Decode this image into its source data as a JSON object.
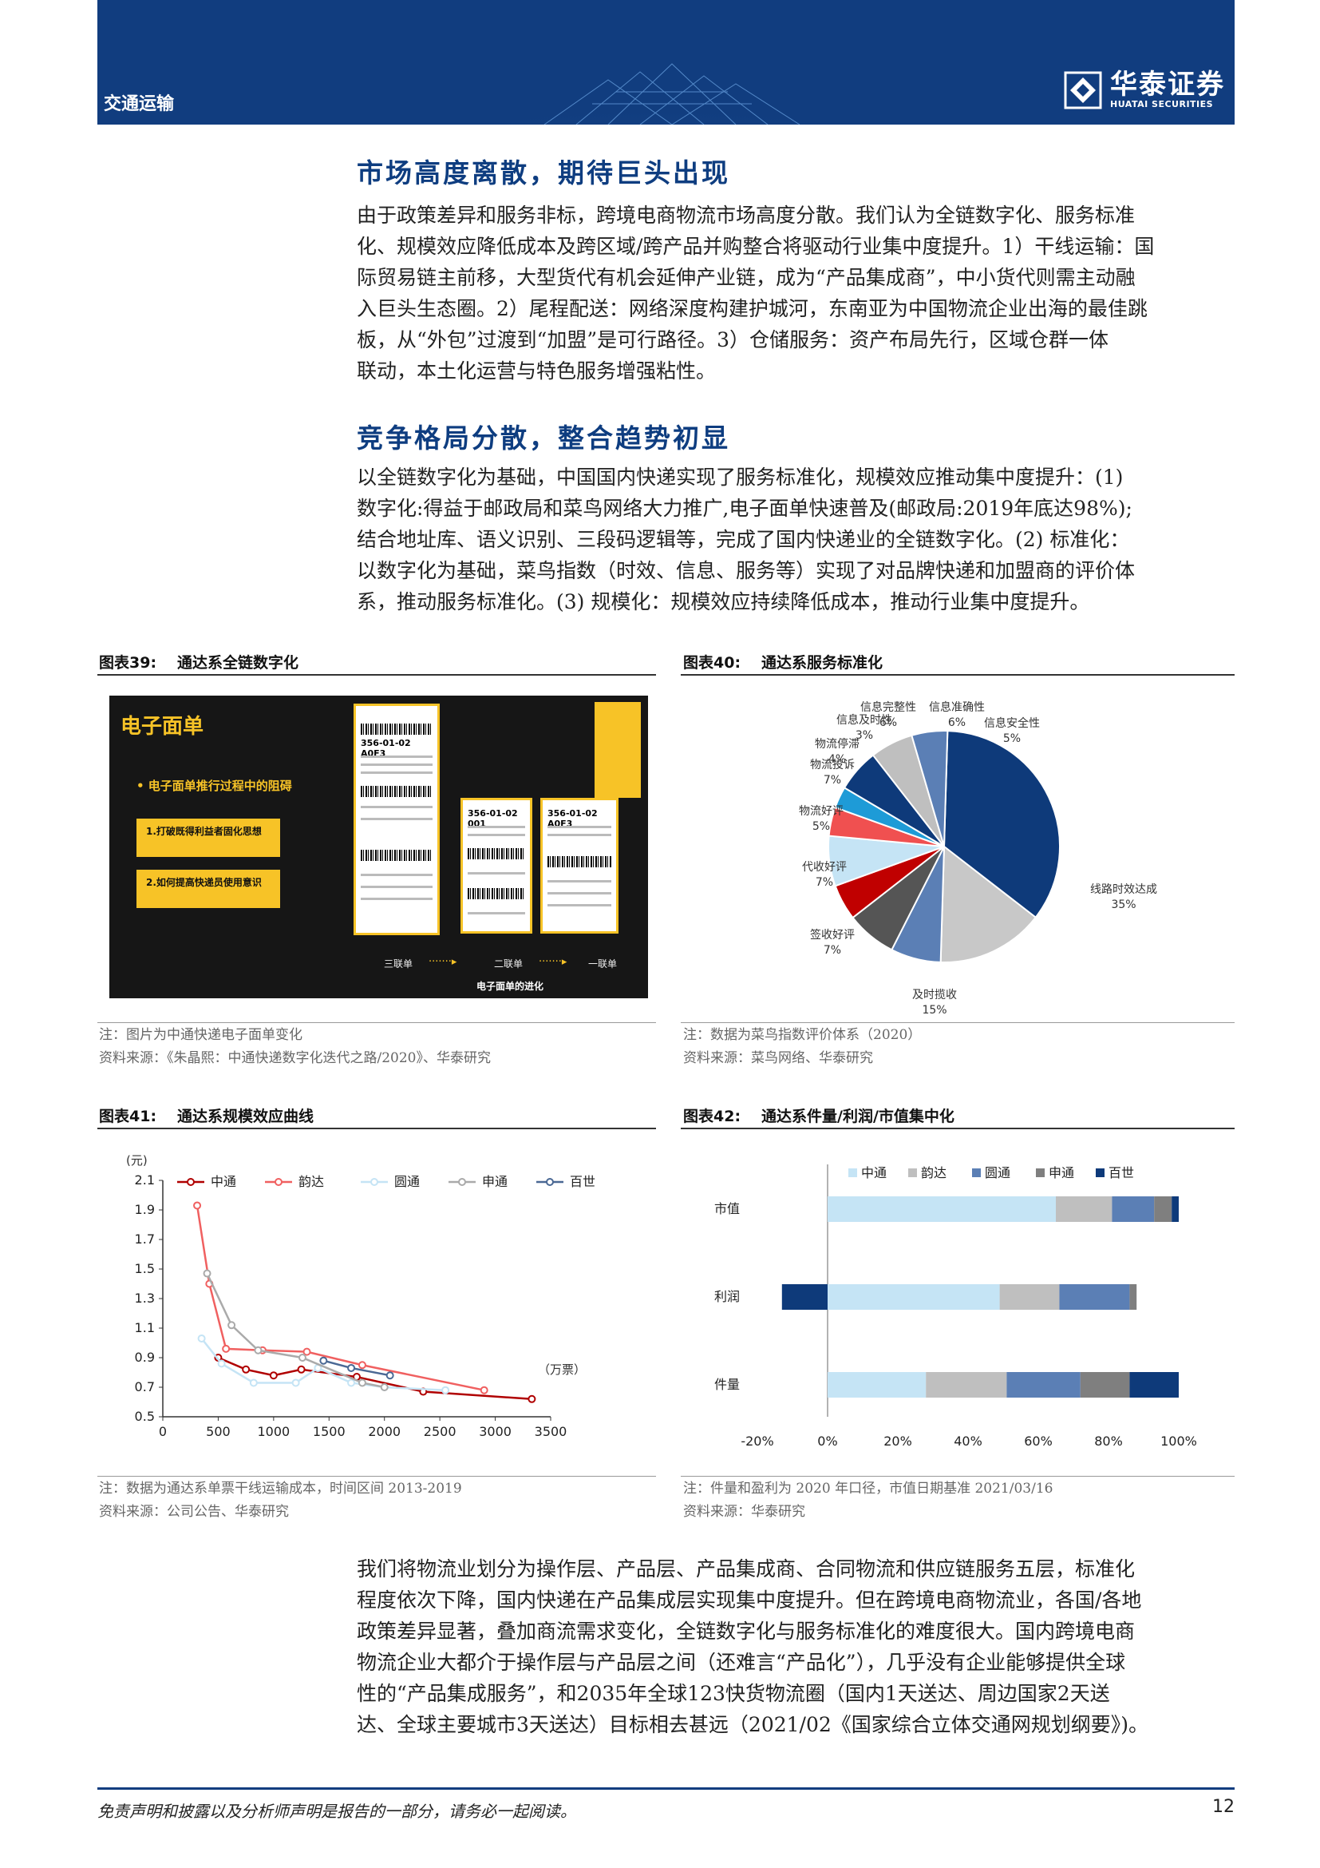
{
  "header": {
    "section": "交通运输",
    "logo_cn": "华泰证券",
    "logo_en": "HUATAI SECURITIES"
  },
  "sections": [
    {
      "title": "市场高度离散，期待巨头出现",
      "lines": [
        "由于政策差异和服务非标，跨境电商物流市场高度分散。我们认为全链数字化、服务标准",
        "化、规模效应降低成本及跨区域/跨产品并购整合将驱动行业集中度提升。1）干线运输：国",
        "际贸易链主前移，大型货代有机会延伸产业链，成为“产品集成商”，中小货代则需主动融",
        "入巨头生态圈。2）尾程配送：网络深度构建护城河，东南亚为中国物流企业出海的最佳跳",
        "板，从“外包”过渡到“加盟”是可行路径。3）仓储服务：资产布局先行，区域仓群一体",
        "联动，本土化运营与特色服务增强粘性。"
      ]
    },
    {
      "title": "竞争格局分散，整合趋势初显",
      "lines": [
        "以全链数字化为基础，中国国内快递实现了服务标准化，规模效应推动集中度提升：(1)",
        "数字化:得益于邮政局和菜鸟网络大力推广,电子面单快速普及(邮政局:2019年底达98%);",
        "结合地址库、语义识别、三段码逻辑等，完成了国内快递业的全链数字化。(2) 标准化：",
        "以数字化为基础，菜鸟指数（时效、信息、服务等）实现了对品牌快递和加盟商的评价体",
        "系，推动服务标准化。(3) 规模化：规模效应持续降低成本，推动行业集中度提升。"
      ]
    }
  ],
  "closing_lines": [
    "我们将物流业划分为操作层、产品层、产品集成商、合同物流和供应链服务五层，标准化",
    "程度依次下降，国内快递在产品集成层实现集中度提升。但在跨境电商物流业，各国/各地",
    "政策差异显著，叠加商流需求变化，全链数字化与服务标准化的难度很大。国内跨境电商",
    "物流企业大都介于操作层与产品层之间（还难言“产品化”），几乎没有企业能够提供全球",
    "性的“产品集成服务”，和2035年全球123快货物流圈（国内1天送达、周边国家2天送",
    "达、全球主要城市3天送达）目标相去甚远（2021/02《国家综合立体交通网规划纲要》)。"
  ],
  "fig39": {
    "num": "图表39:",
    "title": "通达系全链数字化",
    "img_title": "电子面单",
    "bullet": "• 电子面单推行过程中的阻碍",
    "box1": "1.打破既得利益者固化思想",
    "box2": "2.如何提高快递员使用意识",
    "stage1": "三联单",
    "stage2": "二联单",
    "stage3": "一联单",
    "img_caption": "电子面单的进化",
    "code1": "356-01-02 A0F3",
    "code2": "356-01-02 001",
    "code3": "356-01-02 A0F3",
    "note": "注：图片为中通快递电子面单变化",
    "source": "资料来源：《朱晶熙：中通快递数字化迭代之路/2020》、华泰研究"
  },
  "fig40": {
    "num": "图表40:",
    "title": "通达系服务标准化",
    "note": "注：数据为菜鸟指数评价体系（2020）",
    "source": "资料来源：菜鸟网络、华泰研究"
  },
  "fig41": {
    "num": "图表41:",
    "title": "通达系规模效应曲线",
    "unit_y": "(元)",
    "unit_x": "（万票）",
    "note": "注：数据为通达系单票干线运输成本，时间区间 2013-2019",
    "source": "资料来源：公司公告、华泰研究"
  },
  "fig42": {
    "num": "图表42:",
    "title": "通达系件量/利润/市值集中化",
    "note": "注：件量和盈利为 2020 年口径，市值日期基准 2021/03/16",
    "source": "资料来源：华泰研究"
  },
  "chart_data": [
    {
      "type": "pie",
      "labels": [
        "线路时效达成",
        "及时揽收",
        "签收好评",
        "代收好评",
        "物流好评",
        "物流投诉",
        "物流停滞",
        "信息及时性",
        "信息完整性",
        "信息准确性",
        "信息安全性"
      ],
      "display": [
        "35%",
        "15%",
        "7%",
        "7%",
        "5%",
        "7%",
        "4%",
        "3%",
        "6%",
        "6%",
        "5%"
      ],
      "values": [
        35,
        15,
        7,
        7,
        5,
        7,
        4,
        3,
        6,
        6,
        5
      ],
      "colors": [
        "#0e3a7a",
        "#c8c8c8",
        "#5b7fb5",
        "#555555",
        "#c00000",
        "#c5e4f5",
        "#f05050",
        "#1e9bd7",
        "#0e3a7a",
        "#bfbfbf",
        "#5b7fb5"
      ]
    },
    {
      "type": "line",
      "series": [
        {
          "name": "中通",
          "color": "#b00000",
          "points": [
            [
              500,
              0.9
            ],
            [
              750,
              0.82
            ],
            [
              1000,
              0.78
            ],
            [
              1250,
              0.82
            ],
            [
              1750,
              0.77
            ],
            [
              2350,
              0.67
            ],
            [
              3330,
              0.62
            ]
          ]
        },
        {
          "name": "韵达",
          "color": "#f06060",
          "points": [
            [
              310,
              1.93
            ],
            [
              420,
              1.4
            ],
            [
              570,
              0.96
            ],
            [
              900,
              0.95
            ],
            [
              1300,
              0.94
            ],
            [
              1800,
              0.85
            ],
            [
              2900,
              0.68
            ]
          ]
        },
        {
          "name": "圆通",
          "color": "#c5e4f5",
          "points": [
            [
              350,
              1.03
            ],
            [
              530,
              0.86
            ],
            [
              820,
              0.73
            ],
            [
              1200,
              0.73
            ],
            [
              1400,
              0.83
            ],
            [
              1700,
              0.73
            ],
            [
              2000,
              0.7
            ],
            [
              2550,
              0.68
            ]
          ]
        },
        {
          "name": "申通",
          "color": "#aaaaaa",
          "points": [
            [
              400,
              1.47
            ],
            [
              620,
              1.12
            ],
            [
              860,
              0.95
            ],
            [
              1260,
              0.9
            ],
            [
              1800,
              0.73
            ],
            [
              2000,
              0.7
            ]
          ]
        },
        {
          "name": "百世",
          "color": "#4a6894",
          "points": [
            [
              1450,
              0.88
            ],
            [
              1700,
              0.83
            ],
            [
              2050,
              0.78
            ]
          ]
        }
      ],
      "xlim": [
        0,
        3500
      ],
      "xticks": [
        "0",
        "500",
        "1000",
        "1500",
        "2000",
        "2500",
        "3000",
        "3500"
      ],
      "ylim": [
        0.5,
        2.1
      ],
      "yticks": [
        "0.5",
        "0.7",
        "0.9",
        "1.1",
        "1.3",
        "1.5",
        "1.7",
        "1.9",
        "2.1"
      ]
    },
    {
      "type": "bar",
      "orientation": "horizontal",
      "stacked": true,
      "categories": [
        "市值",
        "利润",
        "件量"
      ],
      "series": [
        {
          "name": "中通",
          "color": "#c5e4f5",
          "values": [
            65,
            49,
            28
          ]
        },
        {
          "name": "韵达",
          "color": "#bfbfbf",
          "values": [
            16,
            17,
            23
          ]
        },
        {
          "name": "圆通",
          "color": "#5b7fb5",
          "values": [
            12,
            20,
            21
          ]
        },
        {
          "name": "申通",
          "color": "#7f7f7f",
          "values": [
            5,
            2,
            14
          ]
        },
        {
          "name": "百世",
          "color": "#0e3a7a",
          "values": [
            2,
            -13,
            14
          ]
        }
      ],
      "xlim": [
        -20,
        100
      ],
      "xticks": [
        "-20%",
        "0%",
        "20%",
        "40%",
        "60%",
        "80%",
        "100%"
      ]
    }
  ],
  "footer": {
    "disclaimer": "免责声明和披露以及分析师声明是报告的一部分，请务必一起阅读。",
    "page": "12"
  }
}
